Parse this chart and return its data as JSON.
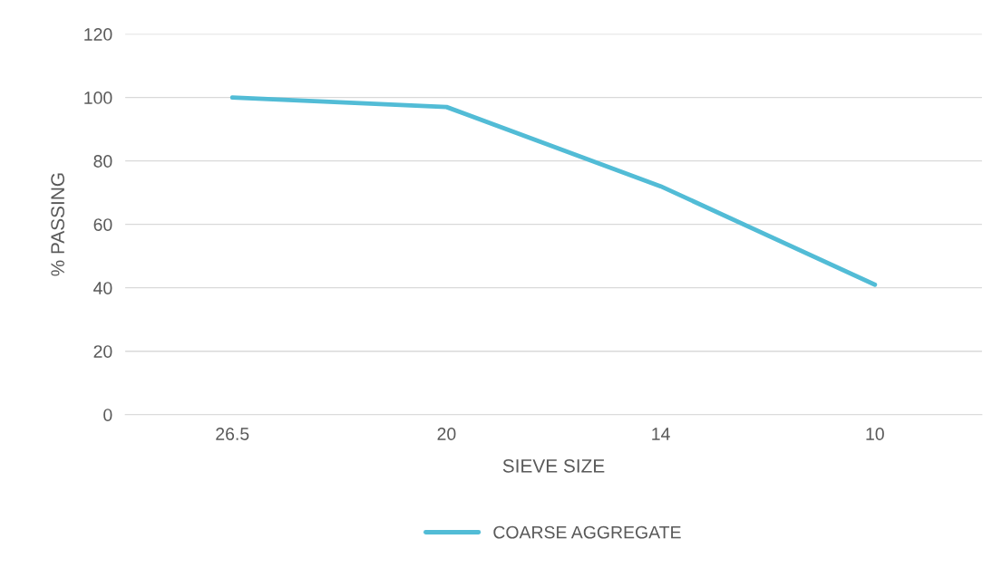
{
  "chart_data": {
    "type": "line",
    "xlabel": "SIEVE SIZE",
    "ylabel": "% PASSING",
    "categories": [
      "26.5",
      "20",
      "14",
      "10"
    ],
    "series": [
      {
        "name": "COARSE AGGREGATE",
        "color": "#52bcd6",
        "values": [
          100,
          97,
          72,
          41
        ]
      }
    ],
    "ylim": [
      0,
      120
    ],
    "yticks": [
      0,
      20,
      40,
      60,
      80,
      100,
      120
    ],
    "grid": "y",
    "legend": "bottom",
    "marker": "none",
    "line_style": "solid"
  }
}
